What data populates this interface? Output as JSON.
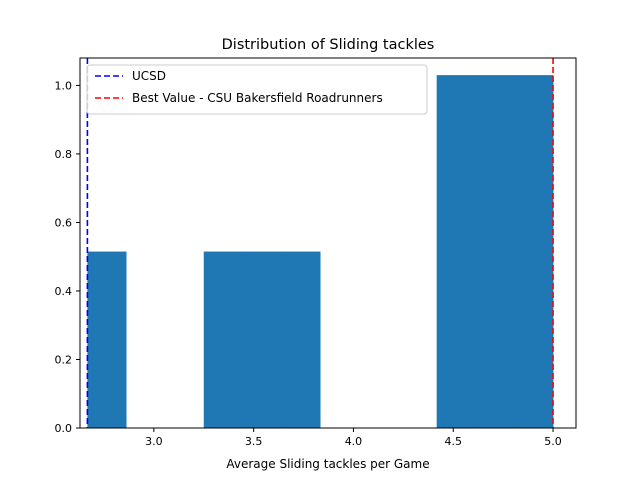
{
  "chart_data": {
    "type": "bar",
    "title": "Distribution of Sliding tackles",
    "xlabel": "Average Sliding tackles per Game",
    "ylabel": "",
    "xlim": [
      2.63,
      5.115
    ],
    "ylim": [
      0,
      1.08
    ],
    "xticks": [
      3.0,
      3.5,
      4.0,
      4.5,
      5.0
    ],
    "xtick_labels": [
      "3.0",
      "3.5",
      "4.0",
      "4.5",
      "5.0"
    ],
    "yticks": [
      0.0,
      0.2,
      0.4,
      0.6,
      0.8,
      1.0
    ],
    "ytick_labels": [
      "0.0",
      "0.2",
      "0.4",
      "0.6",
      "0.8",
      "1.0"
    ],
    "bins": [
      {
        "x0": 2.667,
        "x1": 2.861,
        "value": 0.515
      },
      {
        "x0": 2.861,
        "x1": 3.056,
        "value": 0.0
      },
      {
        "x0": 3.056,
        "x1": 3.25,
        "value": 0.0
      },
      {
        "x0": 3.25,
        "x1": 3.444,
        "value": 0.515
      },
      {
        "x0": 3.444,
        "x1": 3.639,
        "value": 0.515
      },
      {
        "x0": 3.639,
        "x1": 3.833,
        "value": 0.515
      },
      {
        "x0": 3.833,
        "x1": 4.028,
        "value": 0.0
      },
      {
        "x0": 4.028,
        "x1": 4.222,
        "value": 0.0
      },
      {
        "x0": 4.222,
        "x1": 4.417,
        "value": 0.0
      },
      {
        "x0": 4.417,
        "x1": 4.611,
        "value": 1.03
      },
      {
        "x0": 4.611,
        "x1": 4.806,
        "value": 1.03
      },
      {
        "x0": 4.806,
        "x1": 5.0,
        "value": 1.03
      }
    ],
    "bar_color": "#1f77b4",
    "reference_lines": [
      {
        "name": "UCSD",
        "x": 2.667,
        "color": "#0000ff"
      },
      {
        "name": "Best Value - CSU Bakersfield Roadrunners",
        "x": 5.0,
        "color": "#ff0000"
      }
    ],
    "legend": "top-left",
    "grid": false
  }
}
